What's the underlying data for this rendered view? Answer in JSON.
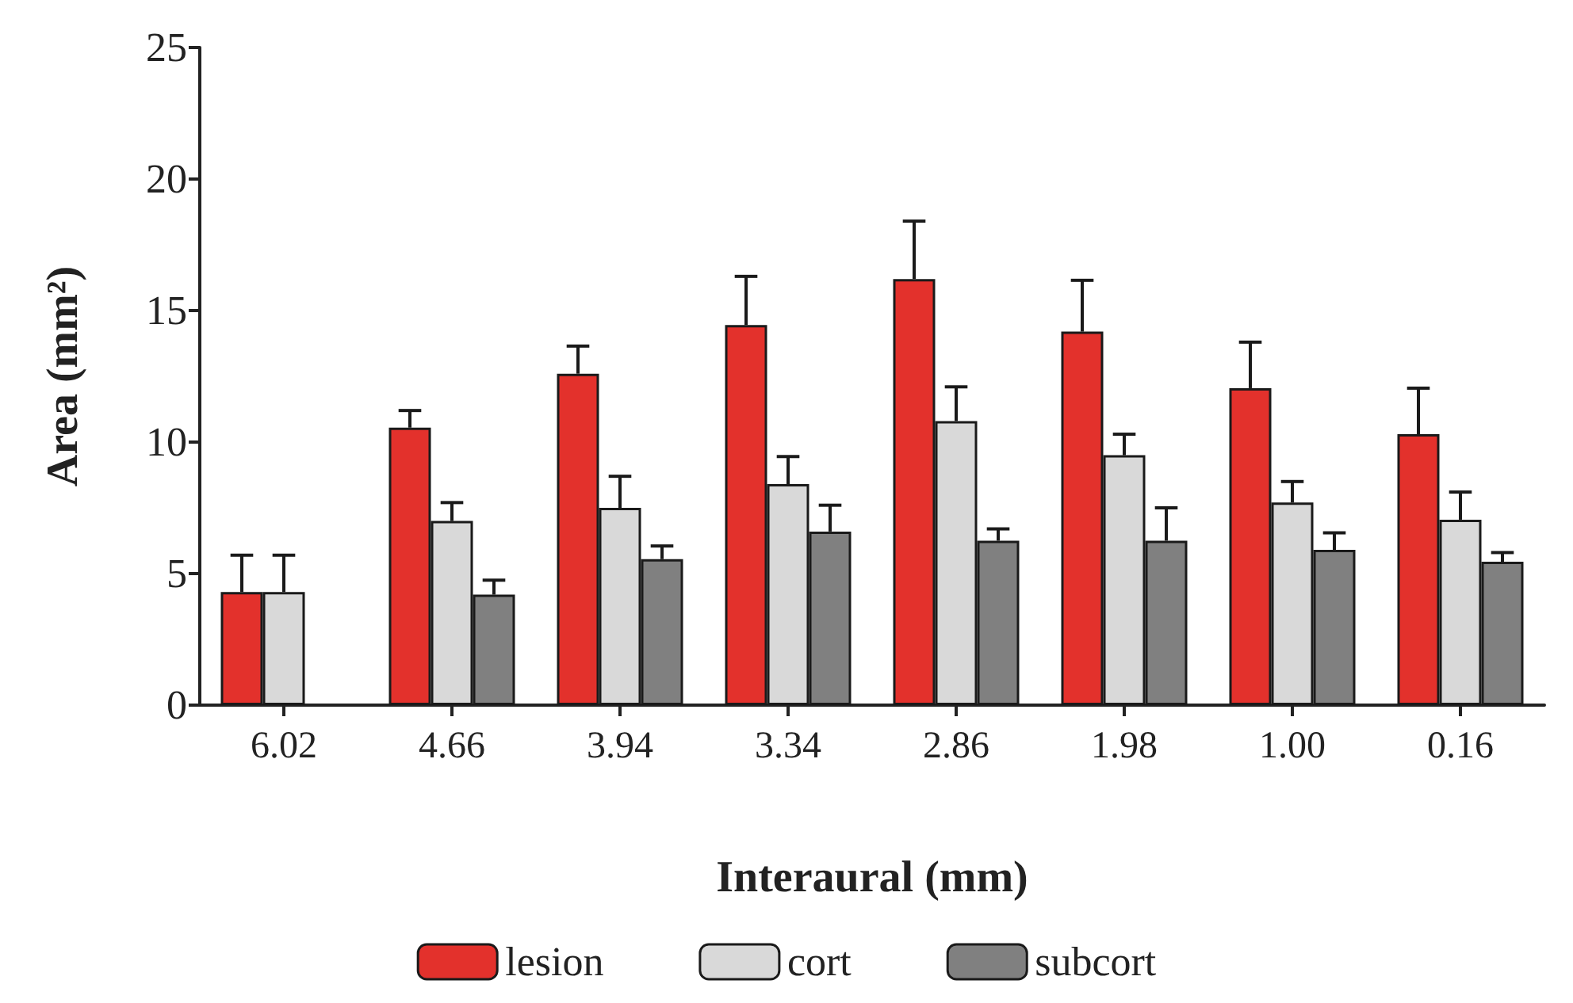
{
  "chart_data": {
    "type": "bar",
    "xlabel": "Interaural (mm)",
    "ylabel": "Area (mm²)",
    "categories": [
      "6.02",
      "4.66",
      "3.94",
      "3.34",
      "2.86",
      "1.98",
      "1.00",
      "0.16"
    ],
    "series": [
      {
        "name": "lesion",
        "color": "#e3312c",
        "values": [
          4.3,
          10.55,
          12.6,
          14.45,
          16.2,
          14.2,
          12.05,
          10.3
        ],
        "errors": [
          [
            4.3,
            5.7
          ],
          [
            10.55,
            11.2
          ],
          [
            12.6,
            13.65
          ],
          [
            14.45,
            16.3
          ],
          [
            16.2,
            18.4
          ],
          [
            14.2,
            16.15
          ],
          [
            12.05,
            13.8
          ],
          [
            10.3,
            12.05
          ]
        ]
      },
      {
        "name": "cort",
        "color": "#d9d9d9",
        "values": [
          4.3,
          7.0,
          7.5,
          8.4,
          10.8,
          9.5,
          7.7,
          7.05
        ],
        "errors": [
          [
            4.3,
            5.7
          ],
          [
            7.0,
            7.7
          ],
          [
            7.5,
            8.7
          ],
          [
            8.4,
            9.45
          ],
          [
            10.8,
            12.1
          ],
          [
            9.5,
            10.3
          ],
          [
            7.7,
            8.5
          ],
          [
            7.05,
            8.1
          ]
        ]
      },
      {
        "name": "subcort",
        "color": "#808080",
        "values": [
          null,
          4.2,
          5.55,
          6.6,
          6.25,
          6.25,
          5.9,
          5.45
        ],
        "errors": [
          null,
          [
            4.2,
            4.75
          ],
          [
            5.55,
            6.05
          ],
          [
            6.6,
            7.6
          ],
          [
            6.25,
            6.7
          ],
          [
            6.25,
            7.5
          ],
          [
            5.9,
            6.55
          ],
          [
            5.45,
            5.8
          ]
        ]
      }
    ],
    "ylim": [
      0,
      25
    ],
    "yticks": [
      0,
      5,
      10,
      15,
      20,
      25
    ],
    "grid": false,
    "legend": "bottom"
  }
}
